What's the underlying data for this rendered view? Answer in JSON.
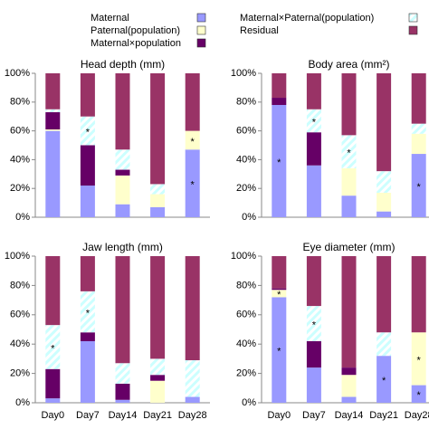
{
  "chart_data": [
    {
      "type": "bar",
      "stacked": true,
      "title": "Head depth (mm)",
      "categories": [
        null,
        null,
        null,
        null,
        null
      ],
      "ylim": [
        0,
        100
      ],
      "yticks": [
        {
          "value": 0,
          "label": "0%"
        },
        {
          "value": 20,
          "label": "20%"
        },
        {
          "value": 40,
          "label": "40%"
        },
        {
          "value": 60,
          "label": "60%"
        },
        {
          "value": 80,
          "label": "80%"
        },
        {
          "value": 100,
          "label": "100%"
        }
      ],
      "series": [
        {
          "name": "Maternal",
          "color": "#9999ff",
          "values": [
            60,
            22,
            9,
            7,
            47
          ],
          "markers": [
            null,
            null,
            null,
            null,
            "*"
          ]
        },
        {
          "name": "Paternal(population)",
          "color": "#ffffcc",
          "values": [
            1,
            0,
            20,
            9,
            13
          ],
          "markers": [
            null,
            null,
            null,
            null,
            "*"
          ]
        },
        {
          "name": "Maternal×population",
          "color": "#660066",
          "values": [
            12,
            28,
            4,
            0,
            0
          ],
          "markers": [
            null,
            null,
            null,
            null,
            null
          ]
        },
        {
          "name": "Maternal×Paternal(population)",
          "color": "#ccffff",
          "hatched": true,
          "values": [
            2,
            20,
            14,
            7,
            0
          ],
          "markers": [
            null,
            "*",
            null,
            null,
            null
          ]
        },
        {
          "name": "Residual",
          "color": "#993366",
          "values": [
            25,
            30,
            53,
            77,
            40
          ],
          "markers": [
            null,
            null,
            null,
            null,
            null
          ]
        }
      ]
    },
    {
      "type": "bar",
      "stacked": true,
      "title": "Body area (mm²)",
      "categories": [
        null,
        null,
        null,
        null,
        null
      ],
      "ylim": [
        0,
        100
      ],
      "yticks": [
        {
          "value": 0,
          "label": "0%"
        },
        {
          "value": 20,
          "label": "20%"
        },
        {
          "value": 40,
          "label": "40%"
        },
        {
          "value": 60,
          "label": "60%"
        },
        {
          "value": 80,
          "label": "80%"
        },
        {
          "value": 100,
          "label": "100%"
        }
      ],
      "series": [
        {
          "values": [
            78,
            36,
            15,
            4,
            44
          ],
          "markers": [
            "*",
            null,
            null,
            null,
            "*"
          ]
        },
        {
          "values": [
            0,
            0,
            19,
            13,
            14
          ],
          "markers": [
            null,
            null,
            null,
            null,
            null
          ]
        },
        {
          "values": [
            5,
            23,
            0,
            0,
            0
          ],
          "markers": [
            null,
            null,
            null,
            null,
            null
          ]
        },
        {
          "values": [
            0,
            16,
            23,
            15,
            7
          ],
          "markers": [
            null,
            "*",
            "*",
            null,
            null
          ]
        },
        {
          "values": [
            17,
            25,
            43,
            68,
            35
          ],
          "markers": [
            null,
            null,
            null,
            null,
            null
          ]
        }
      ]
    },
    {
      "type": "bar",
      "stacked": true,
      "title": "Jaw length (mm)",
      "categories": [
        "Day0",
        "Day7",
        "Day14",
        "Day21",
        "Day28"
      ],
      "ylim": [
        0,
        100
      ],
      "yticks": [
        {
          "value": 0,
          "label": "0%"
        },
        {
          "value": 20,
          "label": "20%"
        },
        {
          "value": 40,
          "label": "40%"
        },
        {
          "value": 60,
          "label": "60%"
        },
        {
          "value": 80,
          "label": "80%"
        },
        {
          "value": 100,
          "label": "100%"
        }
      ],
      "series": [
        {
          "values": [
            3,
            42,
            2,
            0,
            4
          ],
          "markers": [
            null,
            null,
            null,
            null,
            null
          ]
        },
        {
          "values": [
            0,
            0,
            0,
            15,
            0
          ],
          "markers": [
            null,
            null,
            null,
            null,
            null
          ]
        },
        {
          "values": [
            20,
            6,
            11,
            4,
            0
          ],
          "markers": [
            null,
            null,
            null,
            null,
            null
          ]
        },
        {
          "values": [
            30,
            28,
            14,
            11,
            25
          ],
          "markers": [
            "*",
            "*",
            null,
            null,
            null
          ]
        },
        {
          "values": [
            47,
            24,
            73,
            70,
            71
          ],
          "markers": [
            null,
            null,
            null,
            null,
            null
          ]
        }
      ]
    },
    {
      "type": "bar",
      "stacked": true,
      "title": "Eye diameter (mm)",
      "categories": [
        "Day0",
        "Day7",
        "Day14",
        "Day21",
        "Day28"
      ],
      "ylim": [
        0,
        100
      ],
      "yticks": [
        {
          "value": 0,
          "label": "0%"
        },
        {
          "value": 20,
          "label": "20%"
        },
        {
          "value": 40,
          "label": "40%"
        },
        {
          "value": 60,
          "label": "60%"
        },
        {
          "value": 80,
          "label": "80%"
        },
        {
          "value": 100,
          "label": "100%"
        }
      ],
      "series": [
        {
          "values": [
            72,
            24,
            4,
            32,
            12
          ],
          "markers": [
            "*",
            null,
            null,
            "*",
            "*"
          ]
        },
        {
          "values": [
            5,
            0,
            15,
            0,
            36
          ],
          "markers": [
            "*",
            null,
            null,
            null,
            "*"
          ]
        },
        {
          "values": [
            1,
            18,
            5,
            0,
            0
          ],
          "markers": [
            null,
            null,
            null,
            null,
            null
          ]
        },
        {
          "values": [
            0,
            24,
            0,
            16,
            0
          ],
          "markers": [
            null,
            "*",
            null,
            null,
            null
          ]
        },
        {
          "values": [
            22,
            34,
            76,
            52,
            52
          ],
          "markers": [
            null,
            null,
            null,
            null,
            null
          ]
        }
      ]
    }
  ]
}
